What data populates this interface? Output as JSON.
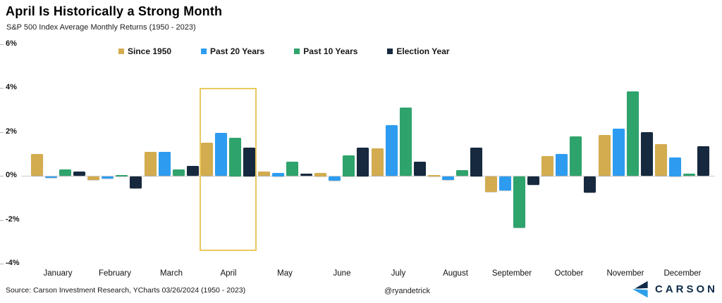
{
  "header": {
    "title": "April Is Historically a Strong Month",
    "subtitle": "S&P 500 Index Average Monthly Returns (1950 - 2023)"
  },
  "chart_data": {
    "type": "bar",
    "categories": [
      "January",
      "February",
      "March",
      "April",
      "May",
      "June",
      "July",
      "August",
      "September",
      "October",
      "November",
      "December"
    ],
    "series": [
      {
        "name": "Since 1950",
        "color": "#D3AC4F",
        "values": [
          1.0,
          -0.15,
          1.1,
          1.5,
          0.2,
          0.15,
          1.25,
          0.05,
          -0.7,
          0.9,
          1.85,
          1.45
        ]
      },
      {
        "name": "Past 20 Years",
        "color": "#2D9CF0",
        "values": [
          -0.05,
          -0.1,
          1.1,
          1.95,
          0.15,
          -0.2,
          2.3,
          -0.15,
          -0.65,
          1.0,
          2.15,
          0.85
        ]
      },
      {
        "name": "Past 10 Years",
        "color": "#2FA36C",
        "values": [
          0.3,
          0.05,
          0.3,
          1.75,
          0.65,
          0.95,
          3.1,
          0.25,
          -2.35,
          1.8,
          3.85,
          0.1
        ]
      },
      {
        "name": "Election Year",
        "color": "#16293E",
        "values": [
          0.2,
          -0.55,
          0.45,
          1.3,
          0.1,
          1.3,
          0.65,
          1.3,
          -0.4,
          -0.75,
          2.0,
          1.35
        ]
      }
    ],
    "ylim": [
      -4,
      6
    ],
    "yticks": [
      6,
      4,
      2,
      0,
      -2,
      -4
    ],
    "ytick_labels": [
      "6%",
      "4%",
      "2%",
      "0%",
      "-2%",
      "-4%"
    ],
    "grid": false,
    "legend_position": "top",
    "highlight": {
      "category": "April",
      "top": 4,
      "bottom": -3.45,
      "border_color": "#E9C95F"
    }
  },
  "footer": {
    "source": "Source: Carson Investment Research, YCharts 03/26/2024 (1950 - 2023)",
    "handle": "@ryandetrick",
    "brand": "CARSON"
  },
  "colors": {
    "background": "#FFFFFF",
    "zero_line": "#CCCCCC",
    "axis_text": "#1A1A1A",
    "brand_navy": "#0E2A47",
    "brand_blue": "#2B9FE8"
  }
}
